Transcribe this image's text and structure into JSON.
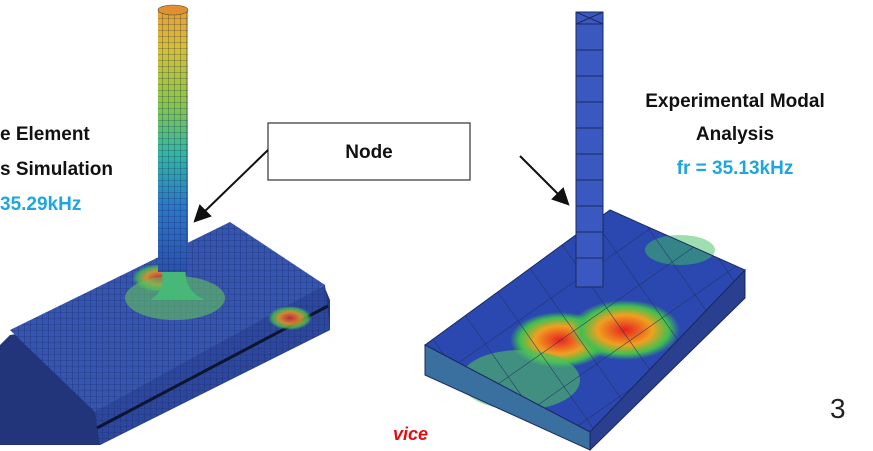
{
  "left_label": {
    "line1": "e Element",
    "line2": "s Simulation",
    "frequency": "35.29kHz"
  },
  "callout": "Node",
  "right_label": {
    "line1": "Experimental Modal",
    "line2": "Analysis",
    "frequency": "fr = 35.13kHz"
  },
  "page_number": "3",
  "footer_text": "vice"
}
